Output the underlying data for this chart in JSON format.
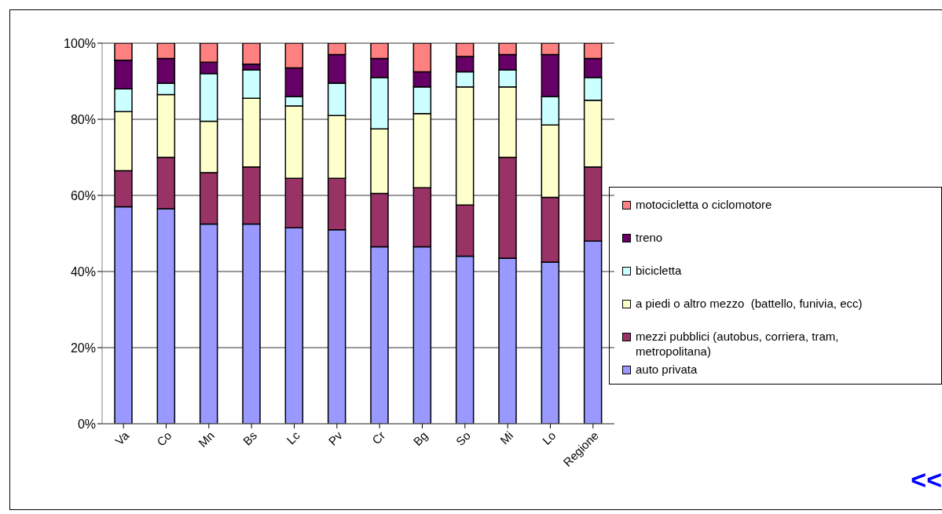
{
  "chart_data": {
    "type": "bar",
    "stacked": true,
    "categories": [
      "Va",
      "Co",
      "Mn",
      "Bs",
      "Lc",
      "Pv",
      "Cr",
      "Bg",
      "So",
      "Mi",
      "Lo",
      "Regione"
    ],
    "series": [
      {
        "name": "auto privata",
        "color": "#9999ff",
        "values": [
          57,
          56.5,
          52.5,
          52.5,
          51.5,
          51,
          46.5,
          46.5,
          44,
          43.5,
          42.5,
          48
        ]
      },
      {
        "name": "mezzi pubblici (autobus, corriera, tram, metropolitana)",
        "color": "#993366",
        "values": [
          9.5,
          13.5,
          13.5,
          15,
          13,
          13.5,
          14,
          15.5,
          13.5,
          26.5,
          17,
          19.5
        ]
      },
      {
        "name": "a piedi o altro mezzo  (battello, funivia, ecc)",
        "color": "#ffffcc",
        "values": [
          15.5,
          16.5,
          13.5,
          18,
          19,
          16.5,
          17,
          19.5,
          31,
          18.5,
          19,
          17.5
        ]
      },
      {
        "name": "bicicletta",
        "color": "#ccffff",
        "values": [
          6,
          3,
          12.5,
          7.5,
          2.5,
          8.5,
          13.5,
          7,
          4,
          4.5,
          7.5,
          6
        ]
      },
      {
        "name": "treno",
        "color": "#660066",
        "values": [
          7.5,
          6.5,
          3,
          1.5,
          7.5,
          7.5,
          5,
          4,
          4,
          4,
          11,
          5
        ]
      },
      {
        "name": "motocicletta o ciclomotore",
        "color": "#ff8080",
        "values": [
          4.5,
          4,
          5,
          5.5,
          6.5,
          3,
          4,
          7.5,
          3.5,
          3,
          3,
          4
        ]
      }
    ],
    "ylim": [
      0,
      100
    ],
    "yticks": [
      {
        "value": 0,
        "label": "0%"
      },
      {
        "value": 20,
        "label": "20%"
      },
      {
        "value": 40,
        "label": "40%"
      },
      {
        "value": 60,
        "label": "60%"
      },
      {
        "value": 80,
        "label": "80%"
      },
      {
        "value": 100,
        "label": "100%"
      }
    ],
    "grid": "y",
    "legend": "right",
    "annotations": [
      "<<"
    ]
  }
}
